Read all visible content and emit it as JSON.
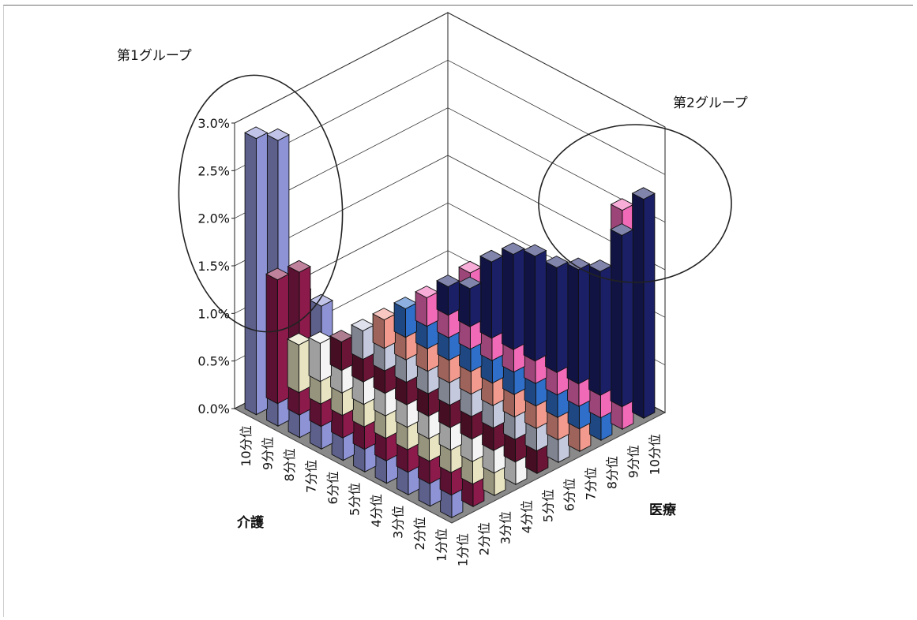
{
  "chart_data": {
    "type": "bar",
    "title": "",
    "group1_label": "第1グループ",
    "group2_label": "第2グループ",
    "x_axis_name": "介護",
    "y_axis_name": "医療",
    "z_axis_ticks": [
      "0.0%",
      "0.5%",
      "1.0%",
      "1.5%",
      "2.0%",
      "2.5%",
      "3.0%"
    ],
    "zlim": [
      0,
      3.0
    ],
    "kaigo_categories": [
      "10分位",
      "9分位",
      "8分位",
      "7分位",
      "6分位",
      "5分位",
      "4分位",
      "3分位",
      "2分位",
      "1分位"
    ],
    "iryo_categories": [
      "1分位",
      "2分位",
      "3分位",
      "4分位",
      "5分位",
      "6分位",
      "7分位",
      "8分位",
      "9分位",
      "10分位"
    ],
    "series": [
      {
        "kaigo": "10分位",
        "values": [
          2.9,
          1.3,
          0.5,
          0.4,
          0.3,
          0.3,
          0.3,
          0.3,
          0.3,
          0.3
        ]
      },
      {
        "kaigo": "9分位",
        "values": [
          3.0,
          1.5,
          0.6,
          0.5,
          0.4,
          0.4,
          0.5,
          0.5,
          0.4,
          0.4
        ]
      },
      {
        "kaigo": "8分位",
        "values": [
          1.5,
          0.6,
          0.5,
          0.6,
          0.5,
          0.6,
          0.6,
          0.7,
          0.8,
          0.8
        ]
      },
      {
        "kaigo": "7分位",
        "values": [
          1.5,
          0.9,
          0.8,
          0.7,
          0.7,
          0.7,
          0.8,
          0.9,
          0.9,
          1.0
        ]
      },
      {
        "kaigo": "6分位",
        "values": [
          1.2,
          1.0,
          0.9,
          0.9,
          0.9,
          0.9,
          0.9,
          1.0,
          1.0,
          1.1
        ]
      },
      {
        "kaigo": "5分位",
        "values": [
          1.2,
          1.0,
          1.0,
          1.0,
          1.0,
          1.0,
          1.0,
          1.0,
          1.1,
          1.1
        ]
      },
      {
        "kaigo": "4分位",
        "values": [
          1.0,
          1.0,
          1.0,
          1.0,
          1.0,
          1.0,
          1.1,
          1.1,
          1.1,
          1.2
        ]
      },
      {
        "kaigo": "3分位",
        "values": [
          1.0,
          1.0,
          1.0,
          1.0,
          1.0,
          1.1,
          1.1,
          1.1,
          1.2,
          1.3
        ]
      },
      {
        "kaigo": "2分位",
        "values": [
          1.3,
          1.0,
          1.1,
          1.1,
          1.1,
          1.1,
          1.2,
          1.3,
          1.4,
          1.8
        ]
      },
      {
        "kaigo": "1分位",
        "values": [
          1.8,
          1.6,
          1.4,
          1.3,
          1.3,
          1.2,
          1.4,
          1.7,
          2.3,
          2.3
        ]
      }
    ],
    "colors": [
      "#8e93d6",
      "#8c1a4b",
      "#e8e4c2",
      "#f4f4f4",
      "#6b1536",
      "#c5c9dd",
      "#f39a8e",
      "#2f6fc9",
      "#f06ab8",
      "#1a1f66"
    ],
    "highlighted_regions": [
      "第1グループ",
      "第2グループ"
    ]
  }
}
